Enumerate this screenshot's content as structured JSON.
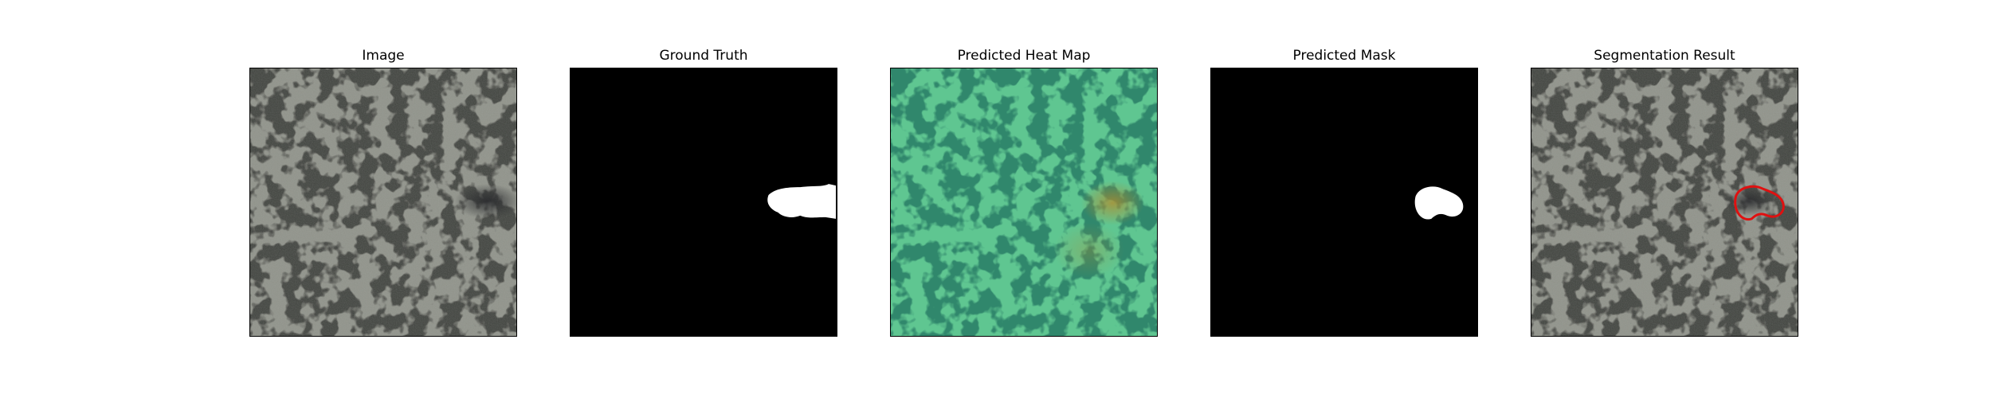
{
  "panels": [
    {
      "id": "image",
      "title": "Image"
    },
    {
      "id": "ground-truth",
      "title": "Ground Truth"
    },
    {
      "id": "heatmap",
      "title": "Predicted Heat Map"
    },
    {
      "id": "predicted-mask",
      "title": "Predicted Mask"
    },
    {
      "id": "segmentation",
      "title": "Segmentation Result"
    }
  ],
  "colors": {
    "texture_light": "#8e9188",
    "texture_dark": "#3e3f3b",
    "heatmap_overlay": "#3fd6a0",
    "heatmap_hot": "#b58a2a",
    "mask_fg": "#ffffff",
    "mask_bg": "#000000",
    "contour": "#e01010"
  }
}
